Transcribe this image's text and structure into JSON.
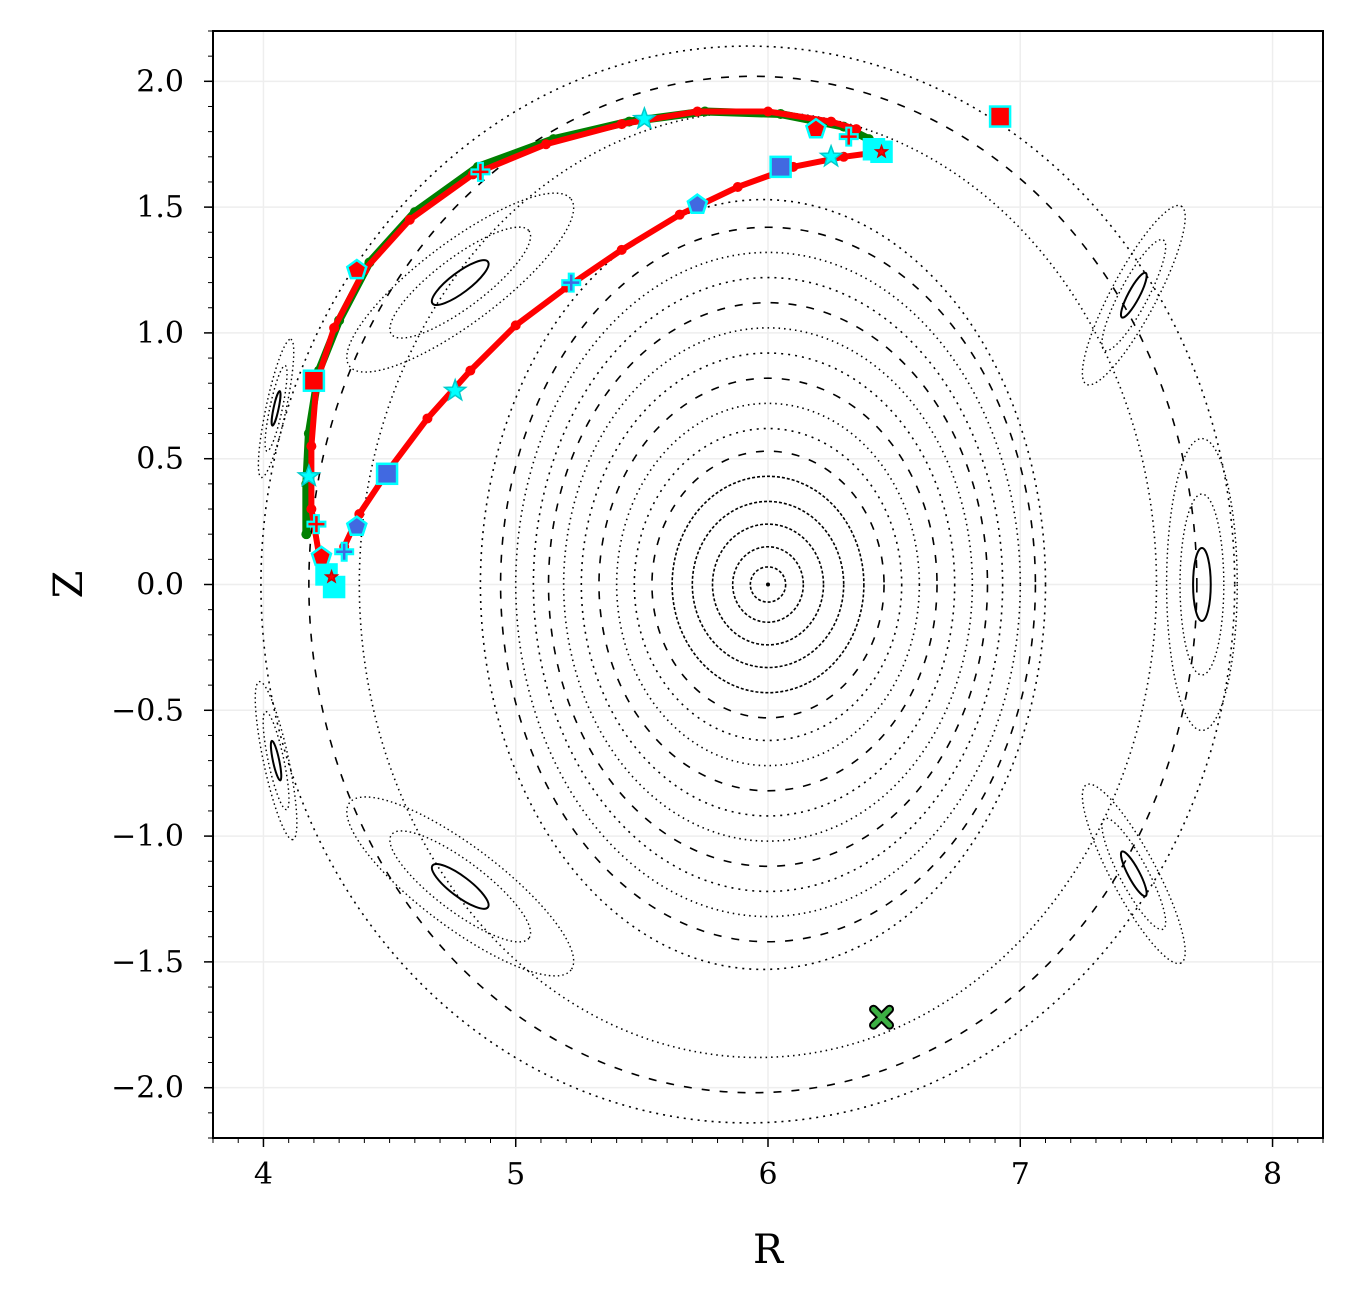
{
  "chart_data": {
    "type": "scatter",
    "title": "",
    "xlabel": "R",
    "ylabel": "Z",
    "xlim": [
      3.8,
      8.2
    ],
    "ylim": [
      -2.2,
      2.2
    ],
    "xticks": [
      4,
      5,
      6,
      7,
      8
    ],
    "xtick_labels": [
      "4",
      "5",
      "6",
      "7",
      "8"
    ],
    "yticks": [
      2.0,
      1.5,
      1.0,
      0.5,
      0.0,
      -0.5,
      -1.0,
      -1.5,
      -2.0
    ],
    "ytick_labels": [
      "2.0",
      "1.5",
      "1.0",
      "0.5",
      "0.0",
      "−0.5",
      "−1.0",
      "−1.5",
      "−2.0"
    ],
    "grid": true,
    "legend": "none",
    "magnetic_axis": {
      "R": 6.0,
      "Z": 0.0
    },
    "x_point": {
      "R": 6.45,
      "Z": -1.72
    },
    "flux_surfaces": [
      {
        "a": 0.07,
        "b": 0.07
      },
      {
        "a": 0.14,
        "b": 0.15
      },
      {
        "a": 0.22,
        "b": 0.24
      },
      {
        "a": 0.3,
        "b": 0.33
      },
      {
        "a": 0.38,
        "b": 0.43
      },
      {
        "a": 0.46,
        "b": 0.53
      },
      {
        "a": 0.53,
        "b": 0.62
      },
      {
        "a": 0.6,
        "b": 0.72
      },
      {
        "a": 0.67,
        "b": 0.82
      },
      {
        "a": 0.74,
        "b": 0.92
      },
      {
        "a": 0.81,
        "b": 1.02
      },
      {
        "a": 0.87,
        "b": 1.12
      },
      {
        "a": 0.93,
        "b": 1.22
      },
      {
        "a": 1.0,
        "b": 1.32
      },
      {
        "a": 1.06,
        "b": 1.42
      },
      {
        "a": 1.12,
        "b": 1.53
      },
      {
        "a": 1.58,
        "b": 1.88
      },
      {
        "a": 1.76,
        "b": 2.02
      },
      {
        "a": 1.93,
        "b": 2.14
      }
    ],
    "islands": [
      {
        "R": 4.78,
        "Z": 1.2,
        "rx": 0.55,
        "ry": 0.16,
        "angle": -37
      },
      {
        "R": 4.78,
        "Z": -1.2,
        "rx": 0.55,
        "ry": 0.16,
        "angle": 37
      },
      {
        "R": 7.72,
        "Z": 0.0,
        "rx": 0.14,
        "ry": 0.58,
        "angle": 0
      },
      {
        "R": 7.45,
        "Z": 1.15,
        "rx": 0.4,
        "ry": 0.09,
        "angle": -62
      },
      {
        "R": 7.45,
        "Z": -1.15,
        "rx": 0.4,
        "ry": 0.09,
        "angle": 62
      },
      {
        "R": 4.05,
        "Z": -0.7,
        "rx": 0.32,
        "ry": 0.05,
        "angle": 78
      },
      {
        "R": 4.05,
        "Z": 0.7,
        "rx": 0.28,
        "ry": 0.04,
        "angle": -78
      }
    ],
    "series": [
      {
        "name": "",
        "marker": "o",
        "color": "#008000",
        "points": [
          [
            4.17,
            0.2
          ],
          [
            4.17,
            0.4
          ],
          [
            4.18,
            0.6
          ],
          [
            4.22,
            0.85
          ],
          [
            4.3,
            1.05
          ],
          [
            4.42,
            1.28
          ],
          [
            4.6,
            1.48
          ],
          [
            4.85,
            1.66
          ],
          [
            5.15,
            1.77
          ],
          [
            5.45,
            1.84
          ],
          [
            5.75,
            1.88
          ],
          [
            6.05,
            1.87
          ],
          [
            6.3,
            1.82
          ],
          [
            6.4,
            1.77
          ]
        ]
      },
      {
        "name": "",
        "marker": "o",
        "color": "#ff0000",
        "points": [
          [
            4.28,
            0.0
          ],
          [
            4.22,
            0.12
          ],
          [
            4.19,
            0.3
          ],
          [
            4.19,
            0.55
          ],
          [
            4.21,
            0.8
          ],
          [
            4.28,
            1.02
          ],
          [
            4.4,
            1.25
          ],
          [
            4.58,
            1.45
          ],
          [
            4.83,
            1.63
          ],
          [
            5.12,
            1.75
          ],
          [
            5.42,
            1.83
          ],
          [
            5.72,
            1.88
          ],
          [
            6.0,
            1.88
          ],
          [
            6.25,
            1.84
          ],
          [
            6.35,
            1.81
          ],
          [
            4.32,
            0.15
          ],
          [
            4.38,
            0.28
          ],
          [
            4.5,
            0.46
          ],
          [
            4.65,
            0.66
          ],
          [
            4.82,
            0.85
          ],
          [
            5.0,
            1.03
          ],
          [
            5.2,
            1.18
          ],
          [
            5.42,
            1.33
          ],
          [
            5.65,
            1.47
          ],
          [
            5.88,
            1.58
          ],
          [
            6.1,
            1.66
          ],
          [
            6.3,
            1.7
          ],
          [
            6.45,
            1.72
          ]
        ]
      }
    ],
    "markers": [
      {
        "shape": "square",
        "fill": "#ff0000",
        "R": 6.92,
        "Z": 1.86
      },
      {
        "shape": "square",
        "fill": "#ff0000",
        "R": 4.2,
        "Z": 0.81
      },
      {
        "shape": "square",
        "fill": "#4169e1",
        "R": 6.05,
        "Z": 1.66
      },
      {
        "shape": "square",
        "fill": "#4169e1",
        "R": 4.49,
        "Z": 0.44
      },
      {
        "shape": "square",
        "fill": "#00ffff",
        "R": 6.45,
        "Z": 1.72
      },
      {
        "shape": "square",
        "fill": "#00ffff",
        "R": 6.42,
        "Z": 1.73
      },
      {
        "shape": "square",
        "fill": "#00ffff",
        "R": 4.28,
        "Z": -0.01
      },
      {
        "shape": "square",
        "fill": "#00ffff",
        "R": 4.25,
        "Z": 0.04
      },
      {
        "shape": "pentagon",
        "fill": "#ff0000",
        "R": 4.37,
        "Z": 1.25
      },
      {
        "shape": "pentagon",
        "fill": "#ff0000",
        "R": 6.19,
        "Z": 1.81
      },
      {
        "shape": "pentagon",
        "fill": "#ff0000",
        "R": 4.23,
        "Z": 0.11
      },
      {
        "shape": "pentagon",
        "fill": "#4169e1",
        "R": 5.72,
        "Z": 1.51
      },
      {
        "shape": "pentagon",
        "fill": "#4169e1",
        "R": 4.37,
        "Z": 0.23
      },
      {
        "shape": "plus",
        "fill": "#ff0000",
        "R": 4.86,
        "Z": 1.64
      },
      {
        "shape": "plus",
        "fill": "#ff0000",
        "R": 6.32,
        "Z": 1.78
      },
      {
        "shape": "plus",
        "fill": "#ff0000",
        "R": 4.21,
        "Z": 0.24
      },
      {
        "shape": "plus",
        "fill": "#4169e1",
        "R": 5.22,
        "Z": 1.2
      },
      {
        "shape": "plus",
        "fill": "#4169e1",
        "R": 4.32,
        "Z": 0.13
      },
      {
        "shape": "star",
        "fill": "#00ffff",
        "R": 5.51,
        "Z": 1.85
      },
      {
        "shape": "star",
        "fill": "#00ffff",
        "R": 4.18,
        "Z": 0.43
      },
      {
        "shape": "star",
        "fill": "#00ffff",
        "R": 4.76,
        "Z": 0.77
      },
      {
        "shape": "star",
        "fill": "#00ffff",
        "R": 6.25,
        "Z": 1.7
      },
      {
        "shape": "star",
        "fill": "#ff0000",
        "R": 6.45,
        "Z": 1.72
      },
      {
        "shape": "star",
        "fill": "#ff0000",
        "R": 4.27,
        "Z": 0.03
      }
    ],
    "colors": {
      "green": "#008000",
      "red": "#ff0000",
      "royalblue": "#4169e1",
      "cyan": "#00ffff",
      "xpoint": "#3cb043"
    }
  }
}
